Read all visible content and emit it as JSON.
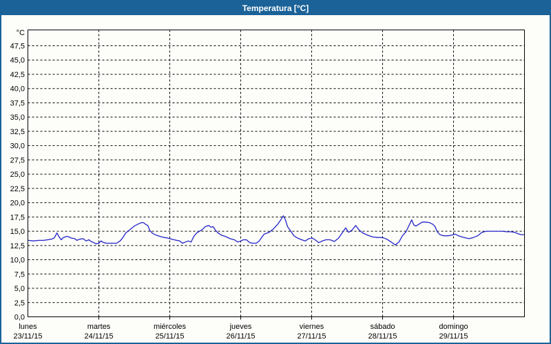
{
  "window": {
    "title": "Temperatura [°C]"
  },
  "colors": {
    "titlebar_bg": "#1a6298",
    "titlebar_text": "#ffffff",
    "window_border": "#1a6298",
    "background": "#fdfdfa",
    "plot_border": "#000000",
    "grid": "#000000",
    "line": "#2222c8",
    "label": "#000000"
  },
  "y_axis": {
    "unit_label": "°C",
    "min": 0,
    "max": 47.5,
    "step": 2.5,
    "decimal_separator": ","
  },
  "x_axis": {
    "days": [
      {
        "name": "lunes",
        "date": "23/11/15"
      },
      {
        "name": "martes",
        "date": "24/11/15"
      },
      {
        "name": "miércoles",
        "date": "25/11/15"
      },
      {
        "name": "jueves",
        "date": "26/11/15"
      },
      {
        "name": "viernes",
        "date": "27/11/15"
      },
      {
        "name": "sábado",
        "date": "28/11/15"
      },
      {
        "name": "domingo",
        "date": "29/11/15"
      }
    ]
  },
  "chart_data": {
    "type": "line",
    "title": "Temperatura [°C]",
    "ylabel": "°C",
    "ylim": [
      0,
      50
    ],
    "ytick_step": 2.5,
    "grid": true,
    "legend": "none",
    "x_unit": "days, 0 = lunes 23/11/15 00:00, 7 = end of domingo 29/11/15",
    "categories": [
      "lunes 23/11/15",
      "martes 24/11/15",
      "miércoles 25/11/15",
      "jueves 26/11/15",
      "viernes 27/11/15",
      "sábado 28/11/15",
      "domingo 29/11/15"
    ],
    "series": [
      {
        "name": "Temperatura",
        "color": "#2222c8",
        "points": [
          [
            0.01,
            13.4
          ],
          [
            0.08,
            13.3
          ],
          [
            0.15,
            13.4
          ],
          [
            0.22,
            13.4
          ],
          [
            0.28,
            13.5
          ],
          [
            0.33,
            13.6
          ],
          [
            0.37,
            13.8
          ],
          [
            0.41,
            14.7
          ],
          [
            0.44,
            14.0
          ],
          [
            0.47,
            13.5
          ],
          [
            0.5,
            13.9
          ],
          [
            0.55,
            14.1
          ],
          [
            0.58,
            14.0
          ],
          [
            0.61,
            13.8
          ],
          [
            0.66,
            13.7
          ],
          [
            0.69,
            13.4
          ],
          [
            0.73,
            13.6
          ],
          [
            0.78,
            13.7
          ],
          [
            0.82,
            13.3
          ],
          [
            0.86,
            13.5
          ],
          [
            0.89,
            13.2
          ],
          [
            0.93,
            13.0
          ],
          [
            0.96,
            12.8
          ],
          [
            1.0,
            12.9
          ],
          [
            1.03,
            13.3
          ],
          [
            1.07,
            13.0
          ],
          [
            1.11,
            12.9
          ],
          [
            1.15,
            12.9
          ],
          [
            1.2,
            12.9
          ],
          [
            1.25,
            12.9
          ],
          [
            1.3,
            13.3
          ],
          [
            1.34,
            13.9
          ],
          [
            1.38,
            14.7
          ],
          [
            1.44,
            15.3
          ],
          [
            1.5,
            15.9
          ],
          [
            1.56,
            16.3
          ],
          [
            1.6,
            16.5
          ],
          [
            1.63,
            16.5
          ],
          [
            1.66,
            16.2
          ],
          [
            1.69,
            16.0
          ],
          [
            1.72,
            15.1
          ],
          [
            1.76,
            14.6
          ],
          [
            1.81,
            14.3
          ],
          [
            1.86,
            14.1
          ],
          [
            1.92,
            13.9
          ],
          [
            1.97,
            13.8
          ],
          [
            2.0,
            13.7
          ],
          [
            2.06,
            13.5
          ],
          [
            2.1,
            13.4
          ],
          [
            2.14,
            13.3
          ],
          [
            2.18,
            12.9
          ],
          [
            2.22,
            13.1
          ],
          [
            2.26,
            13.3
          ],
          [
            2.3,
            13.1
          ],
          [
            2.34,
            14.1
          ],
          [
            2.38,
            14.7
          ],
          [
            2.42,
            15.0
          ],
          [
            2.46,
            15.3
          ],
          [
            2.5,
            15.8
          ],
          [
            2.55,
            16.0
          ],
          [
            2.58,
            15.7
          ],
          [
            2.61,
            15.8
          ],
          [
            2.65,
            15.1
          ],
          [
            2.68,
            14.7
          ],
          [
            2.73,
            14.3
          ],
          [
            2.78,
            14.1
          ],
          [
            2.85,
            13.7
          ],
          [
            2.91,
            13.5
          ],
          [
            2.96,
            13.1
          ],
          [
            3.0,
            13.3
          ],
          [
            3.04,
            13.5
          ],
          [
            3.08,
            13.5
          ],
          [
            3.13,
            13.0
          ],
          [
            3.17,
            12.9
          ],
          [
            3.22,
            12.9
          ],
          [
            3.26,
            13.3
          ],
          [
            3.33,
            14.5
          ],
          [
            3.4,
            14.8
          ],
          [
            3.46,
            15.4
          ],
          [
            3.52,
            16.2
          ],
          [
            3.56,
            16.9
          ],
          [
            3.6,
            17.7
          ],
          [
            3.63,
            17.0
          ],
          [
            3.66,
            15.8
          ],
          [
            3.7,
            15.1
          ],
          [
            3.75,
            14.2
          ],
          [
            3.8,
            13.8
          ],
          [
            3.86,
            13.5
          ],
          [
            3.91,
            13.3
          ],
          [
            3.96,
            13.7
          ],
          [
            4.01,
            13.8
          ],
          [
            4.06,
            13.4
          ],
          [
            4.1,
            13.0
          ],
          [
            4.15,
            13.3
          ],
          [
            4.2,
            13.5
          ],
          [
            4.26,
            13.5
          ],
          [
            4.32,
            13.2
          ],
          [
            4.38,
            13.8
          ],
          [
            4.43,
            14.7
          ],
          [
            4.48,
            15.6
          ],
          [
            4.52,
            14.8
          ],
          [
            4.57,
            15.2
          ],
          [
            4.62,
            16.0
          ],
          [
            4.67,
            15.2
          ],
          [
            4.72,
            14.7
          ],
          [
            4.79,
            14.3
          ],
          [
            4.86,
            14.0
          ],
          [
            4.93,
            13.9
          ],
          [
            5.0,
            13.9
          ],
          [
            5.06,
            13.6
          ],
          [
            5.12,
            13.1
          ],
          [
            5.18,
            12.6
          ],
          [
            5.23,
            13.1
          ],
          [
            5.28,
            14.2
          ],
          [
            5.33,
            14.9
          ],
          [
            5.38,
            16.2
          ],
          [
            5.41,
            17.0
          ],
          [
            5.44,
            16.1
          ],
          [
            5.47,
            15.9
          ],
          [
            5.52,
            16.3
          ],
          [
            5.56,
            16.6
          ],
          [
            5.61,
            16.6
          ],
          [
            5.66,
            16.5
          ],
          [
            5.71,
            16.2
          ],
          [
            5.74,
            15.8
          ],
          [
            5.77,
            14.9
          ],
          [
            5.81,
            14.4
          ],
          [
            5.86,
            14.2
          ],
          [
            5.92,
            14.2
          ],
          [
            5.97,
            14.3
          ],
          [
            6.02,
            14.5
          ],
          [
            6.07,
            14.2
          ],
          [
            6.12,
            14.0
          ],
          [
            6.18,
            13.8
          ],
          [
            6.22,
            13.7
          ],
          [
            6.28,
            13.9
          ],
          [
            6.34,
            14.2
          ],
          [
            6.4,
            14.8
          ],
          [
            6.46,
            15.0
          ],
          [
            6.52,
            15.0
          ],
          [
            6.6,
            15.0
          ],
          [
            6.68,
            15.0
          ],
          [
            6.75,
            14.9
          ],
          [
            6.81,
            14.9
          ],
          [
            6.86,
            14.8
          ],
          [
            6.9,
            14.6
          ],
          [
            6.95,
            14.4
          ],
          [
            6.99,
            14.4
          ]
        ]
      }
    ]
  }
}
